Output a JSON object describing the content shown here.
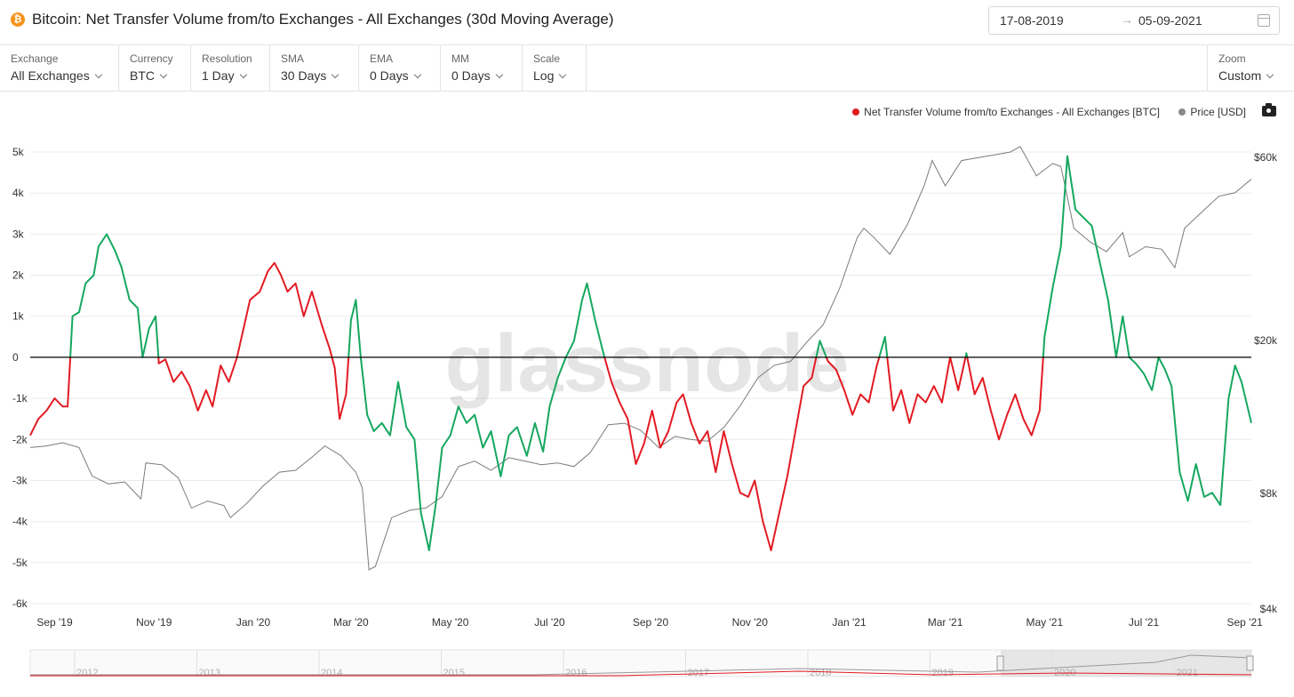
{
  "header": {
    "coin_icon": "bitcoin-icon",
    "title": "Bitcoin: Net Transfer Volume from/to Exchanges - All Exchanges (30d Moving Average)",
    "date_from": "17-08-2019",
    "date_to": "05-09-2021",
    "arrow": "→"
  },
  "controls": [
    {
      "label": "Exchange",
      "value": "All Exchanges"
    },
    {
      "label": "Currency",
      "value": "BTC"
    },
    {
      "label": "Resolution",
      "value": "1 Day"
    },
    {
      "label": "SMA",
      "value": "30 Days"
    },
    {
      "label": "EMA",
      "value": "0 Days"
    },
    {
      "label": "MM",
      "value": "0 Days"
    },
    {
      "label": "Scale",
      "value": "Log"
    }
  ],
  "zoom": {
    "label": "Zoom",
    "value": "Custom"
  },
  "legend": [
    {
      "name": "Net Transfer Volume from/to Exchanges - All Exchanges [BTC]",
      "color": "#e31b23"
    },
    {
      "name": "Price [USD]",
      "color": "#888888"
    }
  ],
  "colors": {
    "positive": "#16a760",
    "negative": "#e31b23",
    "price": "#7a7a7a",
    "grid": "#ebebeb",
    "zero": "#000000"
  },
  "watermark": "glassnode",
  "chart_data": {
    "type": "line",
    "x_range": [
      "2019-08-17",
      "2021-09-05"
    ],
    "x_ticks": [
      "Sep '19",
      "Nov '19",
      "Jan '20",
      "Mar '20",
      "May '20",
      "Jul '20",
      "Sep '20",
      "Nov '20",
      "Jan '21",
      "Mar '21",
      "May '21",
      "Jul '21",
      "Sep '21"
    ],
    "y_left": {
      "ticks": [
        "5k",
        "4k",
        "3k",
        "2k",
        "1k",
        "0",
        "-1k",
        "-2k",
        "-3k",
        "-4k",
        "-5k",
        "-6k"
      ],
      "range": [
        -6000,
        5000
      ]
    },
    "y_right": {
      "ticks": [
        "$60k",
        "$20k",
        "$8k",
        "$4k"
      ],
      "scale": "log",
      "range": [
        4000,
        60000
      ]
    },
    "grid": true,
    "legend_position": "top-right",
    "series": [
      {
        "name": "Net Transfer Volume from/to Exchanges - All Exchanges [BTC]",
        "axis": "left",
        "points": [
          [
            "2019-08-17",
            -1900
          ],
          [
            "2019-08-22",
            -1500
          ],
          [
            "2019-08-27",
            -1300
          ],
          [
            "2019-09-01",
            -1000
          ],
          [
            "2019-09-06",
            -1200
          ],
          [
            "2019-09-09",
            -1200
          ],
          [
            "2019-09-12",
            1000
          ],
          [
            "2019-09-16",
            1100
          ],
          [
            "2019-09-20",
            1800
          ],
          [
            "2019-09-25",
            2000
          ],
          [
            "2019-09-28",
            2700
          ],
          [
            "2019-10-03",
            3000
          ],
          [
            "2019-10-08",
            2600
          ],
          [
            "2019-10-12",
            2200
          ],
          [
            "2019-10-17",
            1400
          ],
          [
            "2019-10-22",
            1200
          ],
          [
            "2019-10-25",
            0
          ],
          [
            "2019-10-29",
            700
          ],
          [
            "2019-11-02",
            1000
          ],
          [
            "2019-11-04",
            -150
          ],
          [
            "2019-11-08",
            -50
          ],
          [
            "2019-11-13",
            -600
          ],
          [
            "2019-11-18",
            -350
          ],
          [
            "2019-11-23",
            -700
          ],
          [
            "2019-11-28",
            -1300
          ],
          [
            "2019-12-03",
            -800
          ],
          [
            "2019-12-07",
            -1200
          ],
          [
            "2019-12-12",
            -200
          ],
          [
            "2019-12-17",
            -600
          ],
          [
            "2019-12-22",
            0
          ],
          [
            "2019-12-26",
            700
          ],
          [
            "2019-12-30",
            1400
          ],
          [
            "2020-01-05",
            1600
          ],
          [
            "2020-01-10",
            2100
          ],
          [
            "2020-01-14",
            2300
          ],
          [
            "2020-01-18",
            2000
          ],
          [
            "2020-01-22",
            1600
          ],
          [
            "2020-01-27",
            1800
          ],
          [
            "2020-02-01",
            1000
          ],
          [
            "2020-02-06",
            1600
          ],
          [
            "2020-02-12",
            800
          ],
          [
            "2020-02-17",
            200
          ],
          [
            "2020-02-20",
            -250
          ],
          [
            "2020-02-23",
            -1500
          ],
          [
            "2020-02-27",
            -900
          ],
          [
            "2020-03-01",
            900
          ],
          [
            "2020-03-04",
            1400
          ],
          [
            "2020-03-07",
            0
          ],
          [
            "2020-03-11",
            -1400
          ],
          [
            "2020-03-15",
            -1800
          ],
          [
            "2020-03-20",
            -1600
          ],
          [
            "2020-03-25",
            -1900
          ],
          [
            "2020-03-30",
            -600
          ],
          [
            "2020-04-04",
            -1700
          ],
          [
            "2020-04-09",
            -2000
          ],
          [
            "2020-04-13",
            -3800
          ],
          [
            "2020-04-18",
            -4700
          ],
          [
            "2020-04-22",
            -3600
          ],
          [
            "2020-04-26",
            -2200
          ],
          [
            "2020-05-01",
            -1900
          ],
          [
            "2020-05-06",
            -1200
          ],
          [
            "2020-05-11",
            -1600
          ],
          [
            "2020-05-16",
            -1400
          ],
          [
            "2020-05-21",
            -2200
          ],
          [
            "2020-05-26",
            -1800
          ],
          [
            "2020-06-01",
            -2900
          ],
          [
            "2020-06-06",
            -1900
          ],
          [
            "2020-06-11",
            -1700
          ],
          [
            "2020-06-17",
            -2400
          ],
          [
            "2020-06-22",
            -1600
          ],
          [
            "2020-06-27",
            -2300
          ],
          [
            "2020-07-01",
            -1200
          ],
          [
            "2020-07-06",
            -500
          ],
          [
            "2020-07-11",
            0
          ],
          [
            "2020-07-16",
            400
          ],
          [
            "2020-07-21",
            1400
          ],
          [
            "2020-07-24",
            1800
          ],
          [
            "2020-07-29",
            900
          ],
          [
            "2020-08-03",
            100
          ],
          [
            "2020-08-08",
            -600
          ],
          [
            "2020-08-13",
            -1100
          ],
          [
            "2020-08-18",
            -1500
          ],
          [
            "2020-08-23",
            -2600
          ],
          [
            "2020-08-28",
            -2100
          ],
          [
            "2020-09-02",
            -1300
          ],
          [
            "2020-09-07",
            -2200
          ],
          [
            "2020-09-12",
            -1800
          ],
          [
            "2020-09-17",
            -1100
          ],
          [
            "2020-09-21",
            -900
          ],
          [
            "2020-09-26",
            -1600
          ],
          [
            "2020-10-01",
            -2100
          ],
          [
            "2020-10-06",
            -1800
          ],
          [
            "2020-10-11",
            -2800
          ],
          [
            "2020-10-16",
            -1800
          ],
          [
            "2020-10-21",
            -2600
          ],
          [
            "2020-10-26",
            -3300
          ],
          [
            "2020-10-31",
            -3400
          ],
          [
            "2020-11-04",
            -3000
          ],
          [
            "2020-11-09",
            -4000
          ],
          [
            "2020-11-14",
            -4700
          ],
          [
            "2020-11-19",
            -3800
          ],
          [
            "2020-11-24",
            -2900
          ],
          [
            "2020-11-29",
            -1800
          ],
          [
            "2020-12-04",
            -700
          ],
          [
            "2020-12-09",
            -500
          ],
          [
            "2020-12-14",
            400
          ],
          [
            "2020-12-19",
            -100
          ],
          [
            "2020-12-24",
            -300
          ],
          [
            "2020-12-29",
            -800
          ],
          [
            "2021-01-03",
            -1400
          ],
          [
            "2021-01-08",
            -900
          ],
          [
            "2021-01-13",
            -1100
          ],
          [
            "2021-01-18",
            -200
          ],
          [
            "2021-01-23",
            500
          ],
          [
            "2021-01-28",
            -1300
          ],
          [
            "2021-02-02",
            -800
          ],
          [
            "2021-02-07",
            -1600
          ],
          [
            "2021-02-12",
            -900
          ],
          [
            "2021-02-17",
            -1100
          ],
          [
            "2021-02-22",
            -700
          ],
          [
            "2021-02-27",
            -1100
          ],
          [
            "2021-03-04",
            0
          ],
          [
            "2021-03-09",
            -800
          ],
          [
            "2021-03-14",
            100
          ],
          [
            "2021-03-19",
            -900
          ],
          [
            "2021-03-24",
            -500
          ],
          [
            "2021-03-29",
            -1300
          ],
          [
            "2021-04-03",
            -2000
          ],
          [
            "2021-04-08",
            -1400
          ],
          [
            "2021-04-13",
            -900
          ],
          [
            "2021-04-18",
            -1500
          ],
          [
            "2021-04-23",
            -1900
          ],
          [
            "2021-04-28",
            -1300
          ],
          [
            "2021-05-01",
            500
          ],
          [
            "2021-05-06",
            1700
          ],
          [
            "2021-05-11",
            2700
          ],
          [
            "2021-05-15",
            4900
          ],
          [
            "2021-05-20",
            3600
          ],
          [
            "2021-05-25",
            3400
          ],
          [
            "2021-05-30",
            3200
          ],
          [
            "2021-06-04",
            2300
          ],
          [
            "2021-06-09",
            1400
          ],
          [
            "2021-06-14",
            0
          ],
          [
            "2021-06-18",
            1000
          ],
          [
            "2021-06-22",
            0
          ],
          [
            "2021-06-26",
            -150
          ],
          [
            "2021-07-01",
            -400
          ],
          [
            "2021-07-06",
            -800
          ],
          [
            "2021-07-10",
            0
          ],
          [
            "2021-07-14",
            -300
          ],
          [
            "2021-07-18",
            -700
          ],
          [
            "2021-07-23",
            -2800
          ],
          [
            "2021-07-28",
            -3500
          ],
          [
            "2021-08-02",
            -2600
          ],
          [
            "2021-08-07",
            -3400
          ],
          [
            "2021-08-12",
            -3300
          ],
          [
            "2021-08-17",
            -3600
          ],
          [
            "2021-08-22",
            -1000
          ],
          [
            "2021-08-26",
            -200
          ],
          [
            "2021-08-30",
            -600
          ],
          [
            "2021-09-05",
            -1600
          ]
        ]
      },
      {
        "name": "Price [USD]",
        "axis": "right",
        "points": [
          [
            "2019-08-17",
            10200
          ],
          [
            "2019-08-27",
            10300
          ],
          [
            "2019-09-06",
            10500
          ],
          [
            "2019-09-16",
            10200
          ],
          [
            "2019-09-24",
            8600
          ],
          [
            "2019-10-04",
            8200
          ],
          [
            "2019-10-14",
            8300
          ],
          [
            "2019-10-24",
            7500
          ],
          [
            "2019-10-27",
            9300
          ],
          [
            "2019-11-06",
            9200
          ],
          [
            "2019-11-16",
            8500
          ],
          [
            "2019-11-24",
            7100
          ],
          [
            "2019-12-04",
            7400
          ],
          [
            "2019-12-14",
            7200
          ],
          [
            "2019-12-18",
            6700
          ],
          [
            "2019-12-28",
            7300
          ],
          [
            "2020-01-07",
            8100
          ],
          [
            "2020-01-17",
            8800
          ],
          [
            "2020-01-27",
            8900
          ],
          [
            "2020-02-07",
            9700
          ],
          [
            "2020-02-14",
            10300
          ],
          [
            "2020-02-24",
            9700
          ],
          [
            "2020-03-04",
            8800
          ],
          [
            "2020-03-08",
            8000
          ],
          [
            "2020-03-12",
            4900
          ],
          [
            "2020-03-16",
            5000
          ],
          [
            "2020-03-26",
            6700
          ],
          [
            "2020-04-06",
            7000
          ],
          [
            "2020-04-16",
            7100
          ],
          [
            "2020-04-26",
            7600
          ],
          [
            "2020-05-06",
            9100
          ],
          [
            "2020-05-16",
            9400
          ],
          [
            "2020-05-26",
            8900
          ],
          [
            "2020-06-06",
            9600
          ],
          [
            "2020-06-16",
            9400
          ],
          [
            "2020-06-26",
            9200
          ],
          [
            "2020-07-06",
            9300
          ],
          [
            "2020-07-16",
            9100
          ],
          [
            "2020-07-26",
            9900
          ],
          [
            "2020-08-06",
            11700
          ],
          [
            "2020-08-16",
            11800
          ],
          [
            "2020-08-26",
            11300
          ],
          [
            "2020-09-06",
            10200
          ],
          [
            "2020-09-16",
            10900
          ],
          [
            "2020-09-26",
            10700
          ],
          [
            "2020-10-06",
            10600
          ],
          [
            "2020-10-16",
            11500
          ],
          [
            "2020-10-26",
            13100
          ],
          [
            "2020-11-06",
            15500
          ],
          [
            "2020-11-16",
            16700
          ],
          [
            "2020-11-26",
            17100
          ],
          [
            "2020-12-06",
            19200
          ],
          [
            "2020-12-16",
            21300
          ],
          [
            "2020-12-26",
            26400
          ],
          [
            "2021-01-06",
            36000
          ],
          [
            "2021-01-10",
            38000
          ],
          [
            "2021-01-16",
            36000
          ],
          [
            "2021-01-26",
            32500
          ],
          [
            "2021-02-06",
            39000
          ],
          [
            "2021-02-16",
            49000
          ],
          [
            "2021-02-21",
            57000
          ],
          [
            "2021-03-01",
            49000
          ],
          [
            "2021-03-11",
            57000
          ],
          [
            "2021-03-21",
            58000
          ],
          [
            "2021-03-31",
            59000
          ],
          [
            "2021-04-10",
            60000
          ],
          [
            "2021-04-16",
            62000
          ],
          [
            "2021-04-26",
            52000
          ],
          [
            "2021-05-06",
            56000
          ],
          [
            "2021-05-11",
            55000
          ],
          [
            "2021-05-19",
            38000
          ],
          [
            "2021-05-29",
            35000
          ],
          [
            "2021-06-08",
            33000
          ],
          [
            "2021-06-18",
            37000
          ],
          [
            "2021-06-22",
            32000
          ],
          [
            "2021-07-02",
            34000
          ],
          [
            "2021-07-12",
            33500
          ],
          [
            "2021-07-20",
            30000
          ],
          [
            "2021-07-26",
            38000
          ],
          [
            "2021-08-06",
            42000
          ],
          [
            "2021-08-16",
            46000
          ],
          [
            "2021-08-26",
            47000
          ],
          [
            "2021-09-05",
            51000
          ]
        ]
      }
    ],
    "navigator": {
      "years": [
        "2012",
        "2013",
        "2014",
        "2015",
        "2016",
        "2017",
        "2018",
        "2019",
        "2020",
        "2021"
      ]
    }
  }
}
